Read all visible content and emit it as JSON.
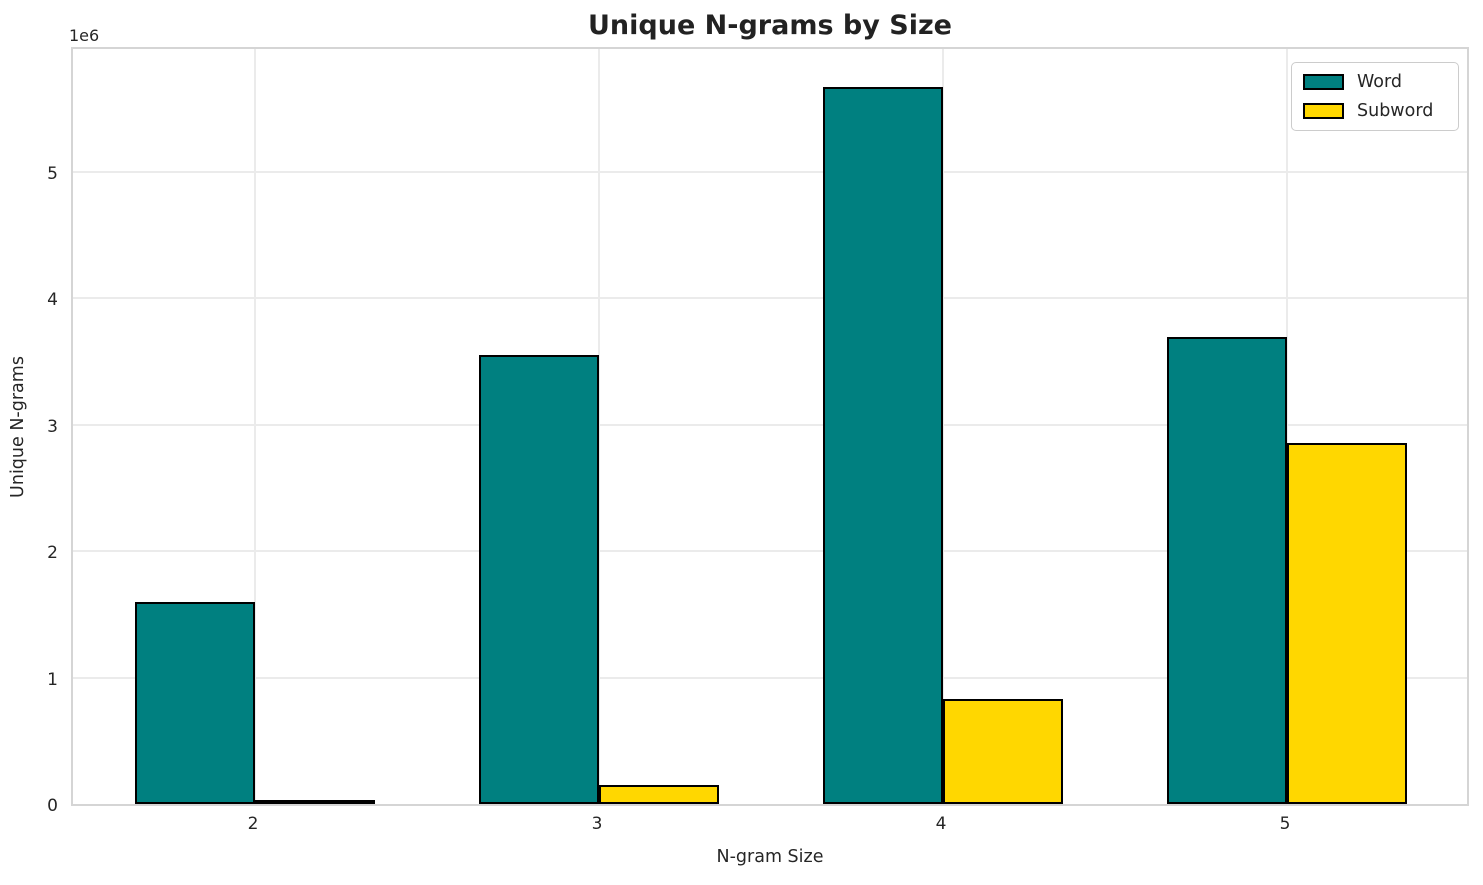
{
  "title": "Unique N-grams by Size",
  "axes": {
    "xlabel": "N-gram Size",
    "ylabel": "Unique N-grams",
    "offset_text": "1e6",
    "x_tick_labels": [
      "2",
      "3",
      "4",
      "5"
    ],
    "y_tick_labels": [
      "0",
      "1",
      "2",
      "3",
      "4",
      "5"
    ]
  },
  "legend": {
    "items": [
      {
        "label": "Word",
        "color": "#008080"
      },
      {
        "label": "Subword",
        "color": "#FFD700"
      }
    ]
  },
  "colors": {
    "word_bar": "#008080",
    "subword_bar": "#FFD700",
    "bar_edge": "#000000",
    "grid": "#ebebeb",
    "text": "#262626",
    "background": "#ffffff"
  },
  "chart_data": {
    "type": "bar",
    "title": "Unique N-grams by Size",
    "xlabel": "N-gram Size",
    "ylabel": "Unique N-grams",
    "categories": [
      "2",
      "3",
      "4",
      "5"
    ],
    "series": [
      {
        "name": "Word",
        "color": "#008080",
        "values": [
          1600000,
          3550000,
          5670000,
          3690000
        ]
      },
      {
        "name": "Subword",
        "color": "#FFD700",
        "values": [
          20000,
          150000,
          830000,
          2850000
        ]
      }
    ],
    "ylim": [
      0,
      6000000
    ],
    "y_tick_values": [
      0,
      1000000,
      2000000,
      3000000,
      4000000,
      5000000
    ],
    "y_offset_multiplier": "1e6",
    "grid": true,
    "legend_position": "upper right"
  }
}
